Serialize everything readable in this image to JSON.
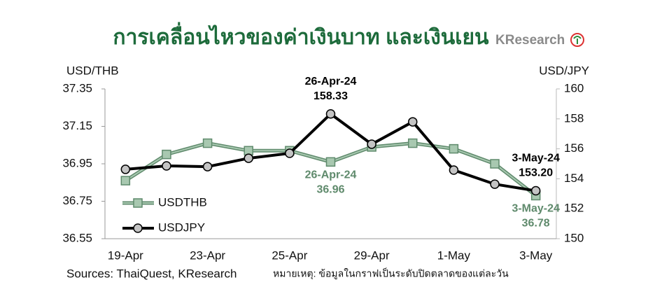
{
  "chart_data": {
    "type": "line",
    "title": "การเคลื่อนไหวของค่าเงินบาท และเงินเยน",
    "logo": "KResearch",
    "ylabel": "USD/THB",
    "y2label": "USD/JPY",
    "source": "Sources: ThaiQuest, KResearch",
    "note": "หมายเหตุ: ข้อมูลในกราฟเป็นระดับปิดตลาดของแต่ละวัน",
    "categories": [
      "19-Apr",
      null,
      "23-Apr",
      null,
      "25-Apr",
      null,
      "29-Apr",
      null,
      "1-May",
      null,
      "3-May"
    ],
    "ylim": [
      36.55,
      37.35
    ],
    "yticks": [
      36.55,
      36.75,
      36.95,
      37.15,
      37.35
    ],
    "y2lim": [
      150,
      160
    ],
    "y2ticks": [
      150,
      152,
      154,
      156,
      158,
      160
    ],
    "series": [
      {
        "name": "USDTHB",
        "color": "#5f8a6c",
        "marker_color": "#a8c8b0",
        "marker": "square",
        "values": [
          36.86,
          37.0,
          37.06,
          37.02,
          37.02,
          36.96,
          37.04,
          37.06,
          37.03,
          36.95,
          36.78
        ],
        "date_labels": [
          null,
          null,
          null,
          null,
          null,
          "26-Apr-24",
          null,
          null,
          null,
          null,
          "3-May-24"
        ],
        "value_labels": [
          null,
          null,
          null,
          null,
          null,
          "36.96",
          null,
          null,
          null,
          null,
          "36.78"
        ]
      },
      {
        "name": "USDJPY",
        "color": "#000000",
        "marker_color": "#c4c4c4",
        "marker": "circle",
        "axis": "y2",
        "values": [
          154.63,
          154.86,
          154.81,
          155.37,
          155.7,
          158.33,
          156.31,
          157.8,
          154.58,
          153.64,
          153.2
        ],
        "date_labels": [
          null,
          null,
          null,
          null,
          null,
          "26-Apr-24",
          null,
          null,
          null,
          null,
          "3-May-24"
        ],
        "value_labels": [
          null,
          null,
          null,
          null,
          null,
          "158.33",
          null,
          null,
          null,
          null,
          "153.20"
        ]
      }
    ]
  }
}
